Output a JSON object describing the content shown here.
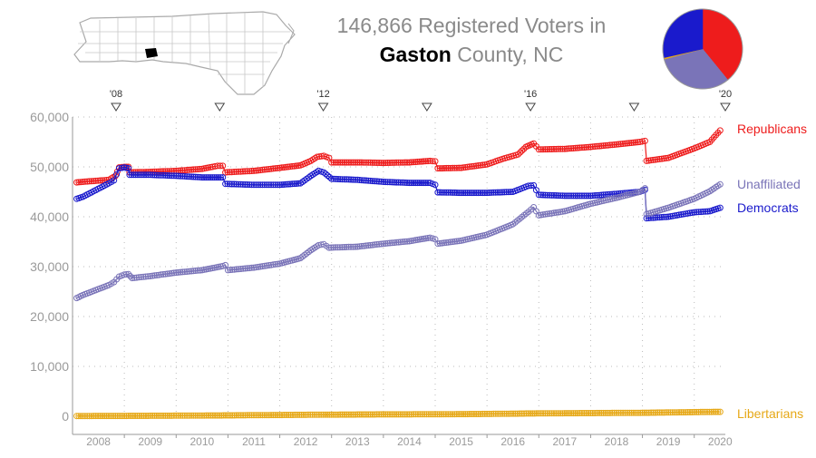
{
  "title": {
    "line1": "146,866 Registered Voters in",
    "county": "Gaston",
    "rest": " County, NC"
  },
  "colors": {
    "republicans": "#ee1c1c",
    "democrats": "#1a1acc",
    "unaffiliated": "#7a74b8",
    "libertarians": "#e6a817",
    "axis": "#9a9a9a",
    "grid": "#bbbbbb",
    "map_highlight": "#000000"
  },
  "chart_data": {
    "type": "line",
    "xlim": [
      2008.0,
      2020.6
    ],
    "ylim": [
      0,
      60000
    ],
    "y_ticks": [
      0,
      10000,
      20000,
      30000,
      40000,
      50000,
      60000
    ],
    "y_tick_labels": [
      "0",
      "10,000",
      "20,000",
      "30,000",
      "40,000",
      "50,000",
      "60,000"
    ],
    "x_tick_labels": [
      "2008",
      "2009",
      "2010",
      "2011",
      "2012",
      "2013",
      "2014",
      "2015",
      "2016",
      "2017",
      "2018",
      "2019",
      "2020"
    ],
    "election_markers": [
      {
        "x": 2008.84,
        "label": "'08"
      },
      {
        "x": 2010.84,
        "label": ""
      },
      {
        "x": 2012.84,
        "label": "'12"
      },
      {
        "x": 2014.84,
        "label": ""
      },
      {
        "x": 2016.84,
        "label": "'16"
      },
      {
        "x": 2018.84,
        "label": ""
      },
      {
        "x": 2020.84,
        "label": "'20"
      }
    ],
    "grid": true,
    "series": [
      {
        "name": "Republicans",
        "key": "rep",
        "points": [
          [
            2008.08,
            46900
          ],
          [
            2008.2,
            47000
          ],
          [
            2008.7,
            47400
          ],
          [
            2008.83,
            48200
          ],
          [
            2008.9,
            49900
          ],
          [
            2009.0,
            50000
          ],
          [
            2009.08,
            50000
          ],
          [
            2009.1,
            48900
          ],
          [
            2009.5,
            49000
          ],
          [
            2010.0,
            49200
          ],
          [
            2010.5,
            49600
          ],
          [
            2010.7,
            50000
          ],
          [
            2010.8,
            50200
          ],
          [
            2010.9,
            50200
          ],
          [
            2010.95,
            48900
          ],
          [
            2011.5,
            49200
          ],
          [
            2012.0,
            49800
          ],
          [
            2012.4,
            50300
          ],
          [
            2012.6,
            51200
          ],
          [
            2012.72,
            52000
          ],
          [
            2012.85,
            52200
          ],
          [
            2012.95,
            51800
          ],
          [
            2013.0,
            50900
          ],
          [
            2013.5,
            50900
          ],
          [
            2014.0,
            50800
          ],
          [
            2014.5,
            50900
          ],
          [
            2014.9,
            51200
          ],
          [
            2015.0,
            51100
          ],
          [
            2015.05,
            49700
          ],
          [
            2015.5,
            49800
          ],
          [
            2016.0,
            50500
          ],
          [
            2016.3,
            51600
          ],
          [
            2016.6,
            52500
          ],
          [
            2016.75,
            54000
          ],
          [
            2016.9,
            54700
          ],
          [
            2017.0,
            53500
          ],
          [
            2017.5,
            53600
          ],
          [
            2018.0,
            54000
          ],
          [
            2018.5,
            54500
          ],
          [
            2018.95,
            55000
          ],
          [
            2019.05,
            55200
          ],
          [
            2019.08,
            51200
          ],
          [
            2019.5,
            51800
          ],
          [
            2020.0,
            53700
          ],
          [
            2020.3,
            55000
          ],
          [
            2020.5,
            57300
          ]
        ]
      },
      {
        "name": "Democrats",
        "key": "dem",
        "points": [
          [
            2008.08,
            43600
          ],
          [
            2008.2,
            44000
          ],
          [
            2008.7,
            46700
          ],
          [
            2008.8,
            47300
          ],
          [
            2008.9,
            49700
          ],
          [
            2009.0,
            49900
          ],
          [
            2009.08,
            49700
          ],
          [
            2009.1,
            48400
          ],
          [
            2009.5,
            48400
          ],
          [
            2010.0,
            48200
          ],
          [
            2010.5,
            47900
          ],
          [
            2010.9,
            47900
          ],
          [
            2010.95,
            46600
          ],
          [
            2011.5,
            46400
          ],
          [
            2012.0,
            46400
          ],
          [
            2012.4,
            46700
          ],
          [
            2012.6,
            48200
          ],
          [
            2012.75,
            49200
          ],
          [
            2012.85,
            48900
          ],
          [
            2013.0,
            47600
          ],
          [
            2013.5,
            47400
          ],
          [
            2014.0,
            47000
          ],
          [
            2014.5,
            46800
          ],
          [
            2014.9,
            46800
          ],
          [
            2015.0,
            46400
          ],
          [
            2015.05,
            44900
          ],
          [
            2015.5,
            44800
          ],
          [
            2016.0,
            44800
          ],
          [
            2016.5,
            45000
          ],
          [
            2016.8,
            46200
          ],
          [
            2016.9,
            46300
          ],
          [
            2017.0,
            44400
          ],
          [
            2017.5,
            44200
          ],
          [
            2018.0,
            44200
          ],
          [
            2018.5,
            44600
          ],
          [
            2018.95,
            45000
          ],
          [
            2019.05,
            45400
          ],
          [
            2019.08,
            39700
          ],
          [
            2019.5,
            40000
          ],
          [
            2020.0,
            40900
          ],
          [
            2020.3,
            41100
          ],
          [
            2020.5,
            41800
          ]
        ]
      },
      {
        "name": "Unaffiliated",
        "key": "una",
        "points": [
          [
            2008.08,
            23700
          ],
          [
            2008.2,
            24300
          ],
          [
            2008.7,
            26300
          ],
          [
            2008.8,
            26900
          ],
          [
            2008.9,
            28000
          ],
          [
            2009.0,
            28400
          ],
          [
            2009.08,
            28500
          ],
          [
            2009.15,
            27700
          ],
          [
            2009.5,
            28100
          ],
          [
            2010.0,
            28800
          ],
          [
            2010.5,
            29300
          ],
          [
            2010.9,
            30100
          ],
          [
            2010.95,
            30300
          ],
          [
            2011.0,
            29300
          ],
          [
            2011.5,
            29800
          ],
          [
            2012.0,
            30600
          ],
          [
            2012.4,
            31700
          ],
          [
            2012.6,
            33300
          ],
          [
            2012.75,
            34300
          ],
          [
            2012.85,
            34500
          ],
          [
            2012.95,
            33800
          ],
          [
            2013.5,
            34000
          ],
          [
            2014.0,
            34600
          ],
          [
            2014.5,
            35100
          ],
          [
            2014.9,
            35800
          ],
          [
            2015.0,
            35500
          ],
          [
            2015.05,
            34600
          ],
          [
            2015.5,
            35200
          ],
          [
            2016.0,
            36400
          ],
          [
            2016.5,
            38500
          ],
          [
            2016.8,
            41000
          ],
          [
            2016.9,
            41900
          ],
          [
            2017.0,
            40300
          ],
          [
            2017.5,
            41100
          ],
          [
            2018.0,
            42600
          ],
          [
            2018.5,
            43800
          ],
          [
            2018.95,
            45000
          ],
          [
            2019.05,
            45700
          ],
          [
            2019.08,
            40500
          ],
          [
            2019.5,
            41800
          ],
          [
            2020.0,
            43600
          ],
          [
            2020.3,
            45100
          ],
          [
            2020.5,
            46500
          ]
        ]
      },
      {
        "name": "Libertarians",
        "key": "lib",
        "points": [
          [
            2008.08,
            50
          ],
          [
            2008.2,
            60
          ],
          [
            2008.7,
            70
          ],
          [
            2009.0,
            80
          ],
          [
            2010.0,
            120
          ],
          [
            2011.0,
            180
          ],
          [
            2012.0,
            260
          ],
          [
            2012.8,
            320
          ],
          [
            2013.0,
            330
          ],
          [
            2014.0,
            380
          ],
          [
            2015.0,
            400
          ],
          [
            2016.0,
            470
          ],
          [
            2016.8,
            560
          ],
          [
            2017.0,
            580
          ],
          [
            2018.0,
            640
          ],
          [
            2019.0,
            700
          ],
          [
            2020.0,
            830
          ],
          [
            2020.5,
            900
          ]
        ]
      }
    ]
  },
  "pie_data": {
    "type": "pie",
    "slices": [
      {
        "key": "rep",
        "value": 57300
      },
      {
        "key": "una",
        "value": 46500
      },
      {
        "key": "lib",
        "value": 900
      },
      {
        "key": "dem",
        "value": 41800
      }
    ]
  }
}
